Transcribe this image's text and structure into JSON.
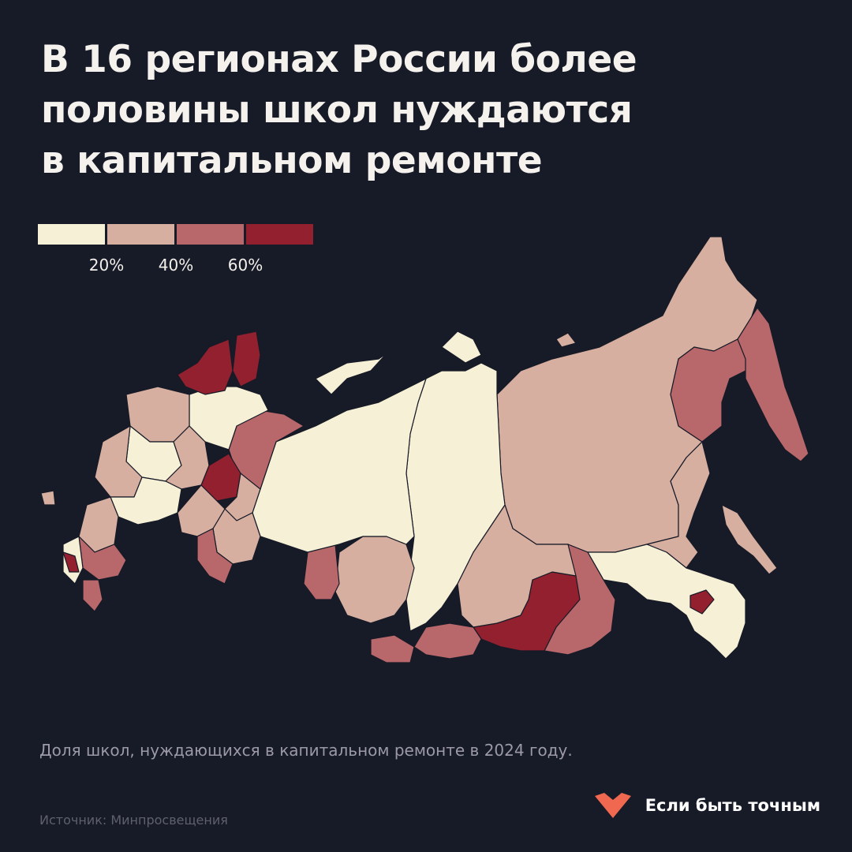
{
  "title": {
    "line1": "В 16 регионах России более",
    "line2": "половины школ нуждаются",
    "line3": "в капитальном ремонте"
  },
  "legend": {
    "colors": [
      "#f6f1d6",
      "#d6afa0",
      "#b8676a",
      "#92202e"
    ],
    "labels": [
      "20%",
      "40%",
      "60%"
    ]
  },
  "caption": "Доля школ, нуждающихся в капитальном ремонте в 2024 году.",
  "source": "Источник: Минпросвещения",
  "brand": {
    "name": "Если быть точным",
    "logo_color": "#f0684f"
  }
}
